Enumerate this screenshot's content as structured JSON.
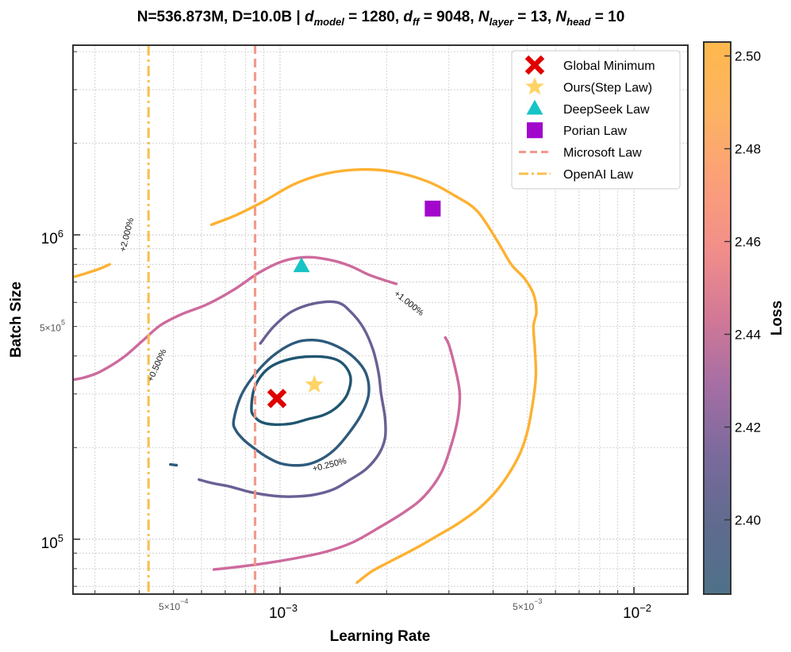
{
  "chart_data": {
    "type": "contour",
    "title": {
      "prefix": "N=536.873M, D=10.0B | ",
      "params": [
        {
          "sym": "d",
          "sub": "model",
          "val": " = 1280"
        },
        {
          "sym": "d",
          "sub": "ff",
          "val": " = 9048"
        },
        {
          "sym": "N",
          "sub": "layer",
          "val": " = 13"
        },
        {
          "sym": "N",
          "sub": "head",
          "val": " = 10"
        }
      ]
    },
    "xlabel": "Learning Rate",
    "ylabel": "Batch Size",
    "xscale": "log",
    "yscale": "log",
    "xlim": [
      0.00026,
      0.0142
    ],
    "ylim": [
      66000,
      4200000
    ],
    "grid": true,
    "x_ticks_major": [
      {
        "value": 0.001,
        "base": "10",
        "exp": "−3"
      },
      {
        "value": 0.01,
        "base": "10",
        "exp": "−2"
      }
    ],
    "x_ticks_minor_labeled": [
      {
        "value": 0.0005,
        "mant": "5",
        "base": "10",
        "exp": "−4"
      },
      {
        "value": 0.005,
        "mant": "5",
        "base": "10",
        "exp": "−3"
      }
    ],
    "y_ticks_major": [
      {
        "value": 100000,
        "base": "10",
        "exp": "5"
      },
      {
        "value": 1000000,
        "base": "10",
        "exp": "6"
      }
    ],
    "y_ticks_minor_labeled": [
      {
        "value": 500000,
        "mant": "5",
        "base": "10",
        "exp": "5"
      }
    ],
    "colorbar": {
      "label": "Loss",
      "min": 2.384,
      "max": 2.503,
      "ticks": [
        "2.40",
        "2.42",
        "2.44",
        "2.46",
        "2.48",
        "2.50"
      ],
      "tick_values": [
        2.4,
        2.42,
        2.44,
        2.46,
        2.48,
        2.5
      ],
      "colormap": [
        "#4f7189",
        "#5f6b8e",
        "#7a6a9c",
        "#a46ea4",
        "#d27896",
        "#f28e8a",
        "#fb9f78",
        "#fdb362",
        "#ffb84d"
      ]
    },
    "contours": [
      {
        "label": "+0.250%",
        "color": "#1f5570",
        "points": [
          [
            0.00083,
            268000
          ],
          [
            0.00085,
            318000
          ],
          [
            0.00093,
            365000
          ],
          [
            0.00108,
            392000
          ],
          [
            0.0013,
            398000
          ],
          [
            0.00148,
            383000
          ],
          [
            0.00158,
            343000
          ],
          [
            0.00155,
            300000
          ],
          [
            0.00145,
            272000
          ],
          [
            0.00133,
            256000
          ],
          [
            0.0012,
            248000
          ],
          [
            0.00108,
            240000
          ],
          [
            0.00097,
            238000
          ],
          [
            0.00089,
            242000
          ],
          [
            0.00085,
            252000
          ],
          [
            0.00083,
            268000
          ]
        ],
        "closed": true
      },
      {
        "label": "+0.500%",
        "color": "#2e5a7c",
        "points": [
          [
            0.00074,
            246000
          ],
          [
            0.00078,
            300000
          ],
          [
            0.00087,
            360000
          ],
          [
            0.00098,
            410000
          ],
          [
            0.00112,
            445000
          ],
          [
            0.00128,
            450000
          ],
          [
            0.00145,
            430000
          ],
          [
            0.00162,
            395000
          ],
          [
            0.00175,
            350000
          ],
          [
            0.00178,
            300000
          ],
          [
            0.0017,
            258000
          ],
          [
            0.00156,
            222000
          ],
          [
            0.00142,
            196000
          ],
          [
            0.00128,
            181000
          ],
          [
            0.00115,
            175000
          ],
          [
            0.00101,
            177000
          ],
          [
            0.00092,
            186000
          ],
          [
            0.00085,
            198000
          ],
          [
            0.00079,
            212000
          ],
          [
            0.00075,
            228000
          ],
          [
            0.00074,
            246000
          ]
        ],
        "closed": true
      },
      {
        "label": "+0.500%",
        "color": "#2e5a7c",
        "points": [
          [
            0.00049,
            176000
          ],
          [
            0.00051,
            175000
          ]
        ],
        "closed": false
      },
      {
        "label": "+1.000%",
        "color": "#6a5f94",
        "points": [
          [
            0.00088,
            440000
          ],
          [
            0.00096,
            500000
          ],
          [
            0.00108,
            560000
          ],
          [
            0.00125,
            595000
          ],
          [
            0.00145,
            600000
          ],
          [
            0.00158,
            560000
          ],
          [
            0.00172,
            495000
          ],
          [
            0.00183,
            420000
          ],
          [
            0.0019,
            350000
          ],
          [
            0.00193,
            300000
          ],
          [
            0.00198,
            250000
          ],
          [
            0.00198,
            215000
          ],
          [
            0.0019,
            190000
          ],
          [
            0.00175,
            170000
          ],
          [
            0.00158,
            157000
          ],
          [
            0.00142,
            146000
          ],
          [
            0.00125,
            140000
          ],
          [
            0.00108,
            138000
          ],
          [
            0.00095,
            139000
          ],
          [
            0.00082,
            143000
          ],
          [
            0.00072,
            149000
          ],
          [
            0.00064,
            153000
          ],
          [
            0.00059,
            157000
          ]
        ],
        "closed": false
      },
      {
        "label": "+2.000%",
        "color": "#cd6a9d",
        "points": [
          [
            0.00026,
            334000
          ],
          [
            0.00028,
            340000
          ],
          [
            0.00031,
            355000
          ],
          [
            0.00036,
            395000
          ],
          [
            0.00041,
            450000
          ],
          [
            0.00046,
            505000
          ],
          [
            0.00053,
            550000
          ],
          [
            0.00062,
            590000
          ],
          [
            0.00074,
            660000
          ],
          [
            0.00087,
            750000
          ],
          [
            0.00102,
            820000
          ],
          [
            0.0012,
            845000
          ],
          [
            0.0014,
            825000
          ],
          [
            0.00158,
            790000
          ],
          [
            0.00178,
            740000
          ],
          [
            0.00197,
            710000
          ],
          [
            0.00213,
            690000
          ]
        ],
        "closed": false
      },
      {
        "label": "+2.000%",
        "color": "#cd6a9d",
        "points": [
          [
            0.00293,
            460000
          ],
          [
            0.00301,
            430000
          ],
          [
            0.00315,
            350000
          ],
          [
            0.00322,
            300000
          ],
          [
            0.00318,
            250000
          ],
          [
            0.00305,
            205000
          ],
          [
            0.00285,
            165000
          ],
          [
            0.00255,
            138000
          ],
          [
            0.00225,
            123000
          ],
          [
            0.0019,
            109000
          ],
          [
            0.0016,
            97500
          ],
          [
            0.00135,
            91000
          ],
          [
            0.00113,
            87000
          ],
          [
            0.00095,
            84000
          ],
          [
            0.00082,
            82000
          ],
          [
            0.00072,
            80500
          ],
          [
            0.00065,
            79500
          ]
        ],
        "closed": false
      },
      {
        "label": "",
        "color": "#fdb131",
        "points": [
          [
            0.00026,
            727000
          ],
          [
            0.00028,
            745000
          ],
          [
            0.00031,
            775000
          ],
          [
            0.00033,
            800000
          ]
        ],
        "closed": false
      },
      {
        "label": "+1.000%",
        "color": "#fdb131",
        "points": [
          [
            0.00064,
            1080000
          ],
          [
            0.00075,
            1160000
          ],
          [
            0.0009,
            1290000
          ],
          [
            0.0011,
            1470000
          ],
          [
            0.00135,
            1590000
          ],
          [
            0.0017,
            1640000
          ],
          [
            0.0021,
            1610000
          ],
          [
            0.0026,
            1500000
          ],
          [
            0.0031,
            1350000
          ],
          [
            0.0036,
            1200000
          ],
          [
            0.0041,
            960000
          ],
          [
            0.0045,
            800000
          ],
          [
            0.0049,
            720000
          ],
          [
            0.0052,
            640000
          ],
          [
            0.0053,
            560000
          ],
          [
            0.0052,
            500000
          ],
          [
            0.00525,
            420000
          ],
          [
            0.00528,
            340000
          ],
          [
            0.00515,
            270000
          ],
          [
            0.00497,
            220000
          ],
          [
            0.0047,
            185000
          ],
          [
            0.0042,
            150000
          ],
          [
            0.0037,
            128000
          ],
          [
            0.0032,
            113000
          ],
          [
            0.0028,
            103000
          ],
          [
            0.0024,
            93000
          ],
          [
            0.00205,
            84500
          ],
          [
            0.00182,
            78500
          ],
          [
            0.00165,
            72000
          ]
        ],
        "closed": false
      }
    ],
    "contour_label_marks": [
      {
        "text": "+2.000%",
        "lr": 0.00037,
        "bs": 1000000,
        "angle": -76
      },
      {
        "text": "+1.000%",
        "lr": 0.00231,
        "bs": 595000,
        "angle": 38
      },
      {
        "text": "+0.500%",
        "lr": 0.00045,
        "bs": 372000,
        "angle": -66
      },
      {
        "text": "+0.250%",
        "lr": 0.00138,
        "bs": 175000,
        "angle": -14
      }
    ],
    "points": [
      {
        "name": "Global Minimum",
        "marker": "x",
        "color": "#e00000",
        "lr": 0.00098,
        "bs": 290000
      },
      {
        "name": "Ours(Step Law)",
        "marker": "star",
        "color": "#ffd466",
        "lr": 0.00125,
        "bs": 322000
      },
      {
        "name": "DeepSeek Law",
        "marker": "triangle",
        "color": "#17c3c6",
        "lr": 0.00115,
        "bs": 790000
      },
      {
        "name": "Porian Law",
        "marker": "square",
        "color": "#a207cc",
        "lr": 0.0027,
        "bs": 1220000
      }
    ],
    "vlines": [
      {
        "name": "Microsoft Law",
        "style": "dashed",
        "color": "#f19786",
        "lr": 0.00085
      },
      {
        "name": "OpenAI Law",
        "style": "dashdot",
        "color": "#f7c04e",
        "lr": 0.000425
      }
    ],
    "legend": {
      "placement": "top-right",
      "entries": [
        {
          "label": "Global Minimum",
          "marker": "x",
          "color": "#e00000"
        },
        {
          "label": "Ours(Step Law)",
          "marker": "star",
          "color": "#ffd466"
        },
        {
          "label": "DeepSeek Law",
          "marker": "triangle",
          "color": "#17c3c6"
        },
        {
          "label": "Porian Law",
          "marker": "square",
          "color": "#a207cc"
        },
        {
          "label": "Microsoft Law",
          "marker": "dashed",
          "color": "#f19786"
        },
        {
          "label": "OpenAI Law",
          "marker": "dashdot",
          "color": "#f7c04e"
        }
      ]
    }
  }
}
